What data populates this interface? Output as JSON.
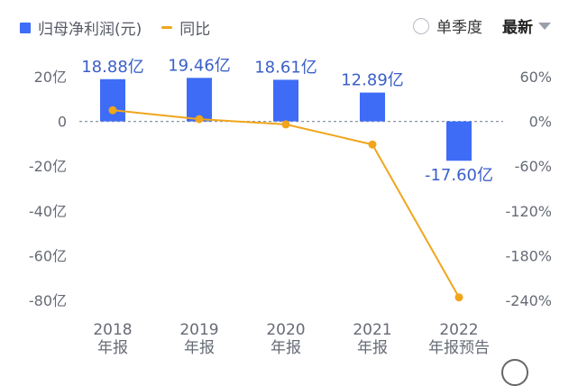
{
  "legend": {
    "bar_label": "归母净利润(元)",
    "line_label": "同比"
  },
  "controls": {
    "single_quarter": "单季度",
    "latest": "最新"
  },
  "colors": {
    "bar": "#3e6cf6",
    "line": "#f0a51c",
    "bar_label": "#3b5fc9",
    "axis_text": "#666b75",
    "zero_line": "#8a93a5"
  },
  "chart_data": {
    "type": "bar",
    "categories": [
      "2018\n年报",
      "2019\n年报",
      "2020\n年报",
      "2021\n年报",
      "2022\n年报预告"
    ],
    "series": [
      {
        "name": "归母净利润(元)",
        "type": "bar",
        "axis": "left",
        "values": [
          18.88,
          19.46,
          18.61,
          12.89,
          -17.6
        ],
        "labels": [
          "18.88亿",
          "19.46亿",
          "18.61亿",
          "12.89亿",
          "-17.60亿"
        ]
      },
      {
        "name": "同比",
        "type": "line",
        "axis": "right",
        "values": [
          15,
          3,
          -4,
          -31,
          -236
        ]
      }
    ],
    "left_axis": {
      "ticks": [
        20,
        0,
        -20,
        -40,
        -60,
        -80
      ],
      "tick_labels": [
        "20亿",
        "0",
        "-20亿",
        "-40亿",
        "-60亿",
        "-80亿"
      ],
      "range": [
        -80,
        20
      ]
    },
    "right_axis": {
      "ticks": [
        60,
        0,
        -60,
        -120,
        -180,
        -240
      ],
      "tick_labels": [
        "60%",
        "0%",
        "-60%",
        "-120%",
        "-180%",
        "-240%"
      ],
      "range": [
        -240,
        60
      ]
    },
    "grid": false,
    "legend_position": "top-left"
  }
}
